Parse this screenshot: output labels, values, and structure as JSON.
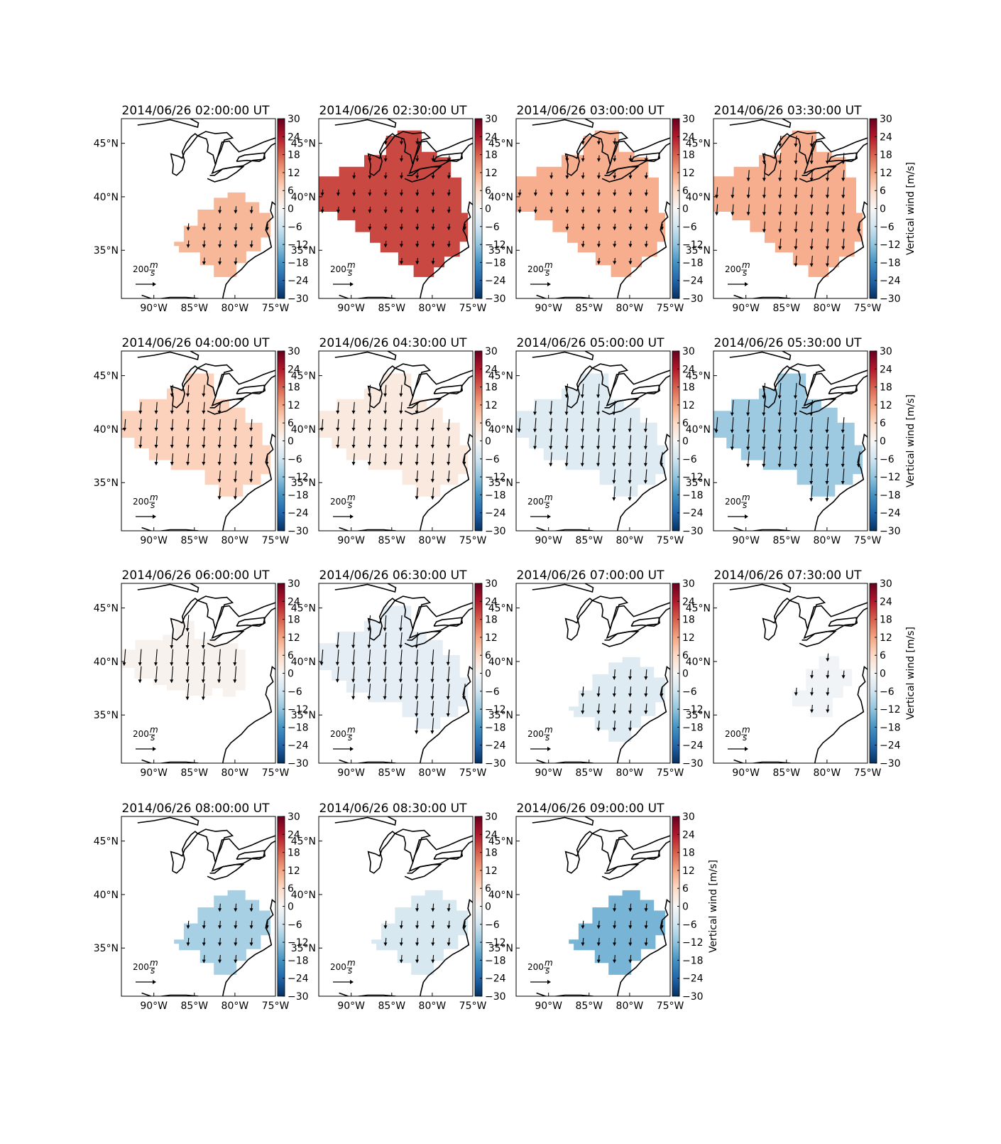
{
  "figure": {
    "colorbar": {
      "label": "Vertical wind [m/s]",
      "ticks": [
        "30",
        "24",
        "18",
        "12",
        "6",
        "0",
        "−6",
        "−12",
        "−18",
        "−24",
        "−30"
      ],
      "range": [
        -30,
        30
      ],
      "colormap": "RdBu_r"
    },
    "lat_ticks": [
      "45°N",
      "40°N",
      "35°N"
    ],
    "lon_ticks": [
      "90°W",
      "85°W",
      "80°W",
      "75°W"
    ],
    "scale_arrow": {
      "value": "200",
      "unit_num": "m",
      "unit_den": "s"
    },
    "panels": [
      {
        "title": "2014/06/26 02:00:00 UT",
        "wind": 10,
        "arrow_len": 0.25
      },
      {
        "title": "2014/06/26 02:30:00 UT",
        "wind": 20,
        "arrow_len": 0.2
      },
      {
        "title": "2014/06/26 03:00:00 UT",
        "wind": 11,
        "arrow_len": 0.2
      },
      {
        "title": "2014/06/26 03:30:00 UT",
        "wind": 11,
        "arrow_len": 0.5
      },
      {
        "title": "2014/06/26 04:00:00 UT",
        "wind": 7,
        "arrow_len": 0.55
      },
      {
        "title": "2014/06/26 04:30:00 UT",
        "wind": 3,
        "arrow_len": 0.55
      },
      {
        "title": "2014/06/26 05:00:00 UT",
        "wind": -4,
        "arrow_len": 0.7
      },
      {
        "title": "2014/06/26 05:30:00 UT",
        "wind": -11,
        "arrow_len": 0.8
      },
      {
        "title": "2014/06/26 06:00:00 UT",
        "wind": 1,
        "arrow_len": 0.85
      },
      {
        "title": "2014/06/26 06:30:00 UT",
        "wind": -3,
        "arrow_len": 0.8
      },
      {
        "title": "2014/06/26 07:00:00 UT",
        "wind": -4,
        "arrow_len": 0.45
      },
      {
        "title": "2014/06/26 07:30:00 UT",
        "wind": -1,
        "arrow_len": 0.3
      },
      {
        "title": "2014/06/26 08:00:00 UT",
        "wind": -10,
        "arrow_len": 0.3
      },
      {
        "title": "2014/06/26 08:30:00 UT",
        "wind": -5,
        "arrow_len": 0.3
      },
      {
        "title": "2014/06/26 09:00:00 UT",
        "wind": -14,
        "arrow_len": 0.3
      }
    ]
  }
}
